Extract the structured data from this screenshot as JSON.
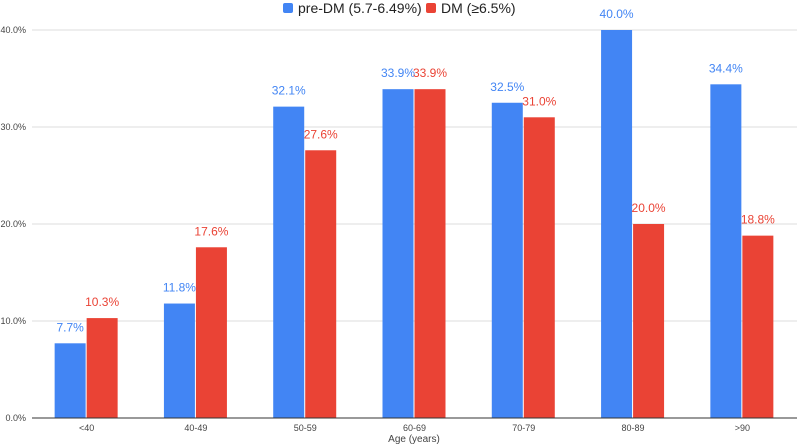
{
  "chart_data": {
    "type": "bar",
    "categories": [
      "<40",
      "40-49",
      "50-59",
      "60-69",
      "70-79",
      "80-89",
      ">90"
    ],
    "series": [
      {
        "name": "pre-DM (5.7-6.49%)",
        "color": "#4285f4",
        "values": [
          7.7,
          11.8,
          32.1,
          33.9,
          32.5,
          40.0,
          34.4
        ],
        "labels": [
          "7.7%",
          "11.8%",
          "32.1%",
          "33.9%",
          "32.5%",
          "40.0%",
          "34.4%"
        ]
      },
      {
        "name": "DM (≥6.5%)",
        "color": "#ea4335",
        "values": [
          10.3,
          17.6,
          27.6,
          33.9,
          31.0,
          20.0,
          18.8
        ],
        "labels": [
          "10.3%",
          "17.6%",
          "27.6%",
          "33.9%",
          "31.0%",
          "20.0%",
          "18.8%"
        ]
      }
    ],
    "yticks": [
      0,
      10,
      20,
      30,
      40
    ],
    "ytick_labels": [
      "0.0%",
      "10.0%",
      "20.0%",
      "30.0%",
      "40.0%"
    ],
    "ylim": [
      0,
      40
    ],
    "xlabel": "Age (years)",
    "ylabel": "",
    "grid": true,
    "legend_position": "top-center"
  }
}
